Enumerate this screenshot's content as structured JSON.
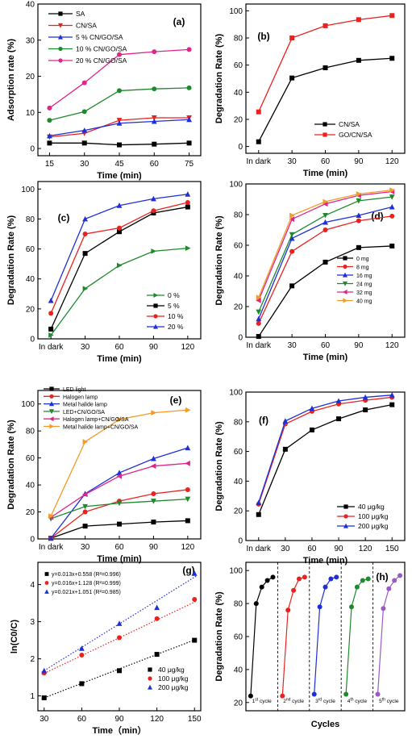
{
  "colors": {
    "black": "#000000",
    "red": "#e8231f",
    "blue": "#1f2fd6",
    "green": "#1e8a2e",
    "magenta": "#e0258a",
    "orange": "#f29b26",
    "purple": "#9b59c8"
  },
  "chart_data": [
    {
      "id": "a",
      "type": "line",
      "panel_label": "(a)",
      "xlabel": "Time (min)",
      "ylabel": "Adsorption rate (%)",
      "x": [
        15,
        30,
        45,
        60,
        75
      ],
      "xlim": [
        10,
        80
      ],
      "ylim": [
        -2,
        40
      ],
      "xticks": [
        15,
        30,
        45,
        60,
        75
      ],
      "yticks": [
        0,
        10,
        20,
        30,
        40
      ],
      "series": [
        {
          "name": "SA",
          "color": "#000000",
          "marker": "square",
          "values": [
            1.5,
            1.5,
            1.0,
            1.2,
            1.5
          ]
        },
        {
          "name": "CN/SA",
          "color": "#e8231f",
          "marker": "tri-down",
          "values": [
            3.2,
            4.2,
            7.8,
            8.5,
            8.5
          ]
        },
        {
          "name": "5 % CN/GO/SA",
          "color": "#1f2fd6",
          "marker": "tri-up",
          "values": [
            3.5,
            5.0,
            7.0,
            7.5,
            8.0
          ]
        },
        {
          "name": "10 % CN/GO/SA",
          "color": "#1e8a2e",
          "marker": "circle",
          "values": [
            7.8,
            10.2,
            16.0,
            16.5,
            16.8
          ]
        },
        {
          "name": "20 % CN/GO/SA",
          "color": "#e0258a",
          "marker": "circle",
          "values": [
            11.2,
            18.2,
            26.0,
            26.8,
            27.4
          ]
        }
      ]
    },
    {
      "id": "b",
      "type": "line",
      "panel_label": "(b)",
      "xlabel": "Time (min)",
      "ylabel": "Degradation Rate (%)",
      "categories": [
        "In dark",
        "30",
        "60",
        "90",
        "120"
      ],
      "ylim": [
        -5,
        105
      ],
      "yticks": [
        0,
        20,
        40,
        60,
        80,
        100
      ],
      "series": [
        {
          "name": "CN/SA",
          "color": "#000000",
          "marker": "square",
          "values": [
            3.5,
            50.5,
            58.0,
            63.5,
            65.0
          ]
        },
        {
          "name": "GO/CN/SA",
          "color": "#e8231f",
          "marker": "square",
          "values": [
            25.5,
            80.0,
            89.0,
            93.5,
            96.5
          ]
        }
      ]
    },
    {
      "id": "c",
      "type": "line",
      "panel_label": "(c)",
      "xlabel": "Time (min)",
      "ylabel": "Degradation Rate (%)",
      "categories": [
        "In dark",
        "30",
        "60",
        "90",
        "120"
      ],
      "ylim": [
        0,
        105
      ],
      "yticks": [
        0,
        20,
        40,
        60,
        80,
        100
      ],
      "series": [
        {
          "name": "0 %",
          "color": "#1e8a2e",
          "marker": "tri-right",
          "values": [
            2.5,
            33.5,
            49.0,
            58.5,
            60.5
          ]
        },
        {
          "name": "5 %",
          "color": "#000000",
          "marker": "square",
          "values": [
            6.5,
            57.0,
            71.5,
            84.0,
            88.0
          ]
        },
        {
          "name": "10 %",
          "color": "#e8231f",
          "marker": "circle",
          "values": [
            17.0,
            70.0,
            74.0,
            85.5,
            91.0
          ]
        },
        {
          "name": "20 %",
          "color": "#1f2fd6",
          "marker": "tri-up",
          "values": [
            25.5,
            80.0,
            89.0,
            93.5,
            96.5
          ]
        }
      ]
    },
    {
      "id": "d",
      "type": "line",
      "panel_label": "(d)",
      "xlabel": "Time (min)",
      "ylabel": "Degradation Rate (%)",
      "categories": [
        "In dark",
        "30",
        "60",
        "90",
        "120"
      ],
      "ylim": [
        0,
        100
      ],
      "yticks": [
        0,
        20,
        40,
        60,
        80,
        100
      ],
      "series": [
        {
          "name": "0  mg",
          "color": "#000000",
          "marker": "square",
          "values": [
            0.5,
            33.5,
            49.0,
            58.5,
            59.5
          ]
        },
        {
          "name": "8  mg",
          "color": "#e8231f",
          "marker": "circle",
          "values": [
            9.0,
            56.0,
            70.0,
            76.0,
            79.0
          ]
        },
        {
          "name": "16  mg",
          "color": "#1f2fd6",
          "marker": "tri-up",
          "values": [
            12.0,
            64.5,
            75.0,
            79.5,
            85.0
          ]
        },
        {
          "name": "24  mg",
          "color": "#1e8a2e",
          "marker": "tri-down",
          "values": [
            16.5,
            67.0,
            79.5,
            89.0,
            91.5
          ]
        },
        {
          "name": "32  mg",
          "color": "#e0258a",
          "marker": "tri-left",
          "values": [
            24.0,
            77.0,
            87.0,
            92.5,
            95.0
          ]
        },
        {
          "name": "40  mg",
          "color": "#f29b26",
          "marker": "tri-right",
          "values": [
            26.0,
            79.5,
            88.5,
            93.5,
            96.0
          ]
        }
      ]
    },
    {
      "id": "e",
      "type": "line",
      "panel_label": "(e)",
      "xlabel": "Time (min)",
      "ylabel": "Degradation Rate (%)",
      "categories": [
        "In dark",
        "30",
        "60",
        "90",
        "120"
      ],
      "ylim": [
        0,
        110
      ],
      "yticks": [
        0,
        20,
        40,
        60,
        80,
        100
      ],
      "series": [
        {
          "name": "LED light",
          "color": "#000000",
          "marker": "square",
          "values": [
            0.5,
            9.5,
            11.0,
            12.5,
            13.5
          ]
        },
        {
          "name": "Halogen lamp",
          "color": "#e8231f",
          "marker": "circle",
          "values": [
            0.5,
            20.0,
            28.0,
            33.5,
            36.5
          ]
        },
        {
          "name": "Metal halide lamp",
          "color": "#1f2fd6",
          "marker": "tri-up",
          "values": [
            0.5,
            33.5,
            49.0,
            59.5,
            67.5
          ]
        },
        {
          "name": "LED+CN/GO/SA",
          "color": "#1e8a2e",
          "marker": "tri-down",
          "values": [
            15.0,
            24.0,
            26.5,
            28.0,
            29.5
          ]
        },
        {
          "name": "Halogen lamp+CN/GO/SA",
          "color": "#e0258a",
          "marker": "tri-left",
          "values": [
            16.0,
            33.0,
            46.5,
            54.0,
            56.0
          ]
        },
        {
          "name": "Metal halide lamp+CN/GO/SA",
          "color": "#f29b26",
          "marker": "tri-right",
          "values": [
            17.0,
            72.0,
            88.5,
            93.5,
            95.5
          ]
        }
      ]
    },
    {
      "id": "f",
      "type": "line",
      "panel_label": "(f)",
      "xlabel": "Time (min)",
      "ylabel": "Degradation Rate (%)",
      "categories": [
        "In dark",
        "30",
        "60",
        "90",
        "120",
        "150"
      ],
      "ylim": [
        0,
        100
      ],
      "yticks": [
        0,
        20,
        40,
        60,
        80,
        100
      ],
      "series": [
        {
          "name": "40  μg/kg",
          "color": "#000000",
          "marker": "square",
          "values": [
            17.5,
            61.5,
            74.5,
            82.0,
            88.0,
            91.5
          ]
        },
        {
          "name": "100  μg/kg",
          "color": "#e8231f",
          "marker": "circle",
          "values": [
            24.5,
            78.5,
            87.0,
            92.0,
            94.5,
            96.5
          ]
        },
        {
          "name": "200  μg/kg",
          "color": "#1f2fd6",
          "marker": "tri-up",
          "values": [
            25.5,
            80.5,
            89.0,
            94.0,
            96.5,
            98.0
          ]
        }
      ]
    },
    {
      "id": "g",
      "type": "scatter",
      "panel_label": "(g)",
      "xlabel": "Time（min）",
      "ylabel": "ln(C0/C)",
      "x": [
        30,
        60,
        90,
        120,
        150
      ],
      "xlim": [
        25,
        155
      ],
      "ylim": [
        0.6,
        4.6
      ],
      "xticks": [
        30,
        60,
        90,
        120,
        150
      ],
      "yticks": [
        1,
        2,
        3,
        4
      ],
      "equations": [
        "y=0.013x+0.558 (R²=0.996)",
        "y=0.016x+1.128 (R²=0.999)",
        "y=0.021x+1.051 (R²=0.985)"
      ],
      "series": [
        {
          "name": "40  μg/kg",
          "color": "#000000",
          "marker": "square",
          "values": [
            0.95,
            1.33,
            1.68,
            2.12,
            2.5
          ],
          "fit": [
            0.013,
            0.558
          ]
        },
        {
          "name": "100  μg/kg",
          "color": "#e8231f",
          "marker": "circle",
          "values": [
            1.62,
            2.1,
            2.57,
            3.08,
            3.6
          ],
          "fit": [
            0.016,
            1.128
          ]
        },
        {
          "name": "200  μg/kg",
          "color": "#1f2fd6",
          "marker": "tri-up",
          "values": [
            1.68,
            2.28,
            2.95,
            3.38,
            4.3
          ],
          "fit": [
            0.021,
            1.051
          ]
        }
      ]
    },
    {
      "id": "h",
      "type": "scatter",
      "panel_label": "(h)",
      "xlabel": "Cycles",
      "ylabel": "Degradation Rate (%)",
      "ylim": [
        15,
        105
      ],
      "yticks": [
        20,
        40,
        60,
        80,
        100
      ],
      "cycle_labels": [
        [
          "1",
          "st cycle"
        ],
        [
          "2",
          "nd cycle"
        ],
        [
          "3",
          "rd cycle"
        ],
        [
          "4",
          "th cycle"
        ],
        [
          "5",
          "th cycle"
        ]
      ],
      "series": [
        {
          "name": "1st cycle",
          "color": "#000000",
          "values": [
            24,
            80,
            90,
            94,
            96
          ]
        },
        {
          "name": "2nd cycle",
          "color": "#e8231f",
          "values": [
            24,
            76,
            88,
            95,
            96
          ]
        },
        {
          "name": "3rd cycle",
          "color": "#1f2fd6",
          "values": [
            25,
            78,
            90,
            95,
            96
          ]
        },
        {
          "name": "4th cycle",
          "color": "#1e8a2e",
          "values": [
            25,
            78,
            90,
            94,
            95
          ]
        },
        {
          "name": "5th cycle",
          "color": "#9b59c8",
          "values": [
            25,
            77,
            89,
            94,
            97
          ]
        }
      ]
    }
  ]
}
